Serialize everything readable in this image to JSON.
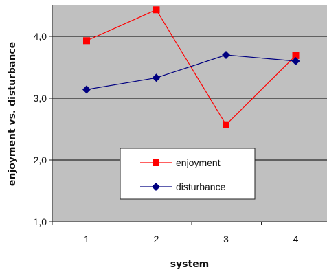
{
  "chart_data": {
    "type": "line",
    "title": "",
    "xlabel": "system",
    "ylabel": "enjoyment vs. disturbance",
    "x": [
      1,
      2,
      3,
      4
    ],
    "xtick_labels": [
      "1",
      "2",
      "3",
      "4"
    ],
    "ylim": [
      1.0,
      4.5
    ],
    "yticks": [
      1.0,
      2.0,
      3.0,
      4.0
    ],
    "ytick_labels": [
      "1,0",
      "2,0",
      "3,0",
      "4,0"
    ],
    "grid": "horizontal",
    "legend_position": "bottom-center",
    "series": [
      {
        "name": "enjoyment",
        "values": [
          3.93,
          4.43,
          2.57,
          3.69
        ],
        "color": "#ff0000",
        "marker": "square"
      },
      {
        "name": "disturbance",
        "values": [
          3.14,
          3.33,
          3.7,
          3.6
        ],
        "color": "#000080",
        "marker": "diamond"
      }
    ],
    "plot_background": "#c0c0c0"
  }
}
